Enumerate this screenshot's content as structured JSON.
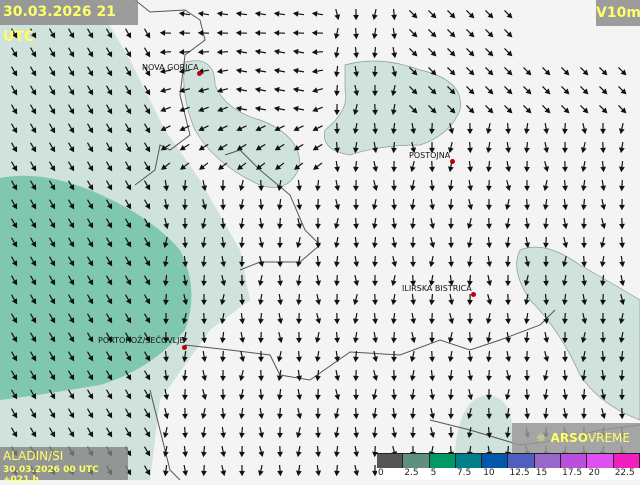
{
  "header": {
    "valid_time": "30.03.2026 21 UTC",
    "parameter": "V10m"
  },
  "footer": {
    "model": "ALADIN/SI",
    "run": "30.03.2026 00 UTC +021 h",
    "brand_bold": "ARSO",
    "brand_light": "VREME"
  },
  "cities": [
    {
      "name": "NOVA GORICA"
    },
    {
      "name": "POSTOJNA"
    },
    {
      "name": "ILIRSKA BISTRICA"
    },
    {
      "name": "PORTOROŽ/SEČOVLJE"
    }
  ],
  "legend": {
    "ticks": [
      "0",
      "2.5",
      "5",
      "7.5",
      "10",
      "12.5",
      "15",
      "17.5",
      "20",
      "22.5"
    ],
    "colors": [
      "#555555",
      "#5f8f80",
      "#009966",
      "#007f8a",
      "#0058a8",
      "#4f5fbf",
      "#9966cc",
      "#bb4fdd",
      "#e050f0",
      "#f020c0"
    ]
  },
  "colors": {
    "label_text": "#ffff66",
    "city_dot": "#c00000",
    "wind_shade_light": "#cfe3dc",
    "wind_shade_mid": "#7fc8ae"
  }
}
